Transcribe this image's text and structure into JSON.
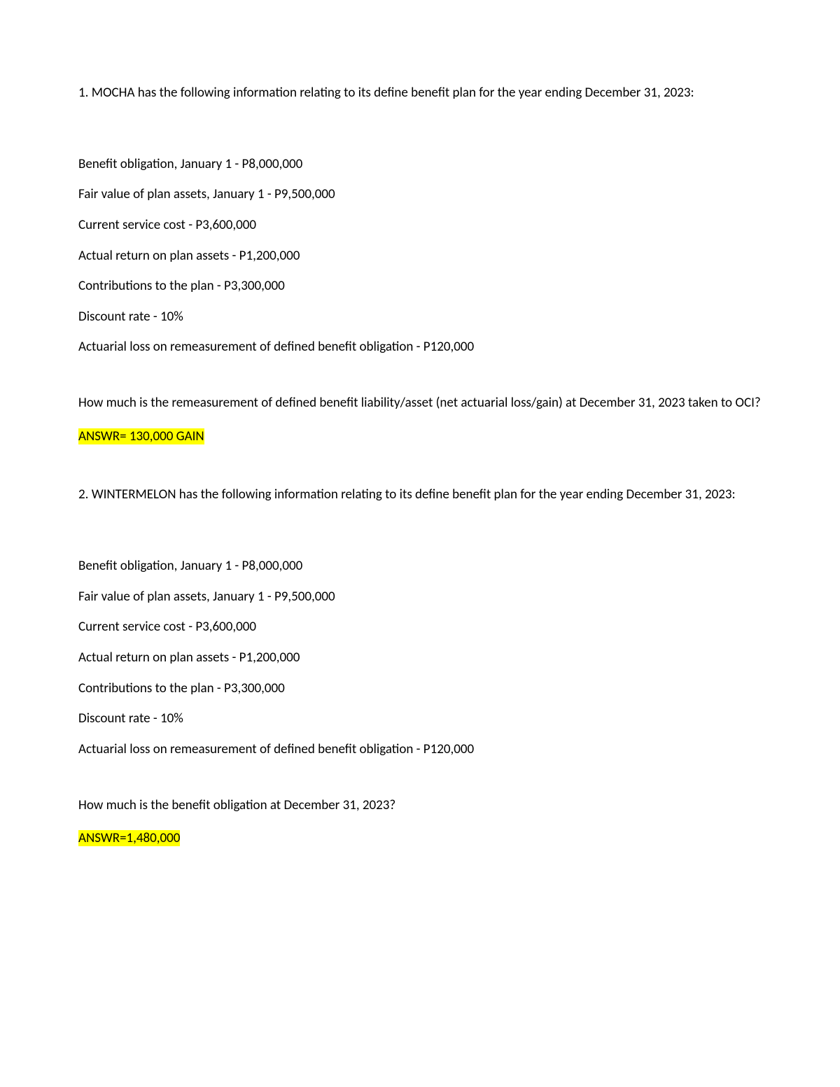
{
  "q1": {
    "intro": "1. MOCHA has the following information relating to its define benefit plan for the year ending December 31, 2023:",
    "items": [
      "Benefit obligation, January 1 - P8,000,000",
      "Fair value of plan assets, January 1 - P9,500,000",
      "Current service cost - P3,600,000",
      "Actual return on plan assets - P1,200,000",
      "Contributions to the plan - P3,300,000",
      "Discount rate - 10%",
      "Actuarial loss on remeasurement of defined benefit obligation - P120,000"
    ],
    "question": "How much is the remeasurement of defined benefit liability/asset (net actuarial loss/gain) at December 31, 2023 taken to OCI?",
    "answer": "ANSWR= 130,000 GAIN"
  },
  "q2": {
    "intro": "2. WINTERMELON has the following information relating to its define benefit plan for the year ending December 31, 2023:",
    "items": [
      "Benefit obligation, January 1 - P8,000,000",
      "Fair value of plan assets, January 1 - P9,500,000",
      "Current service cost - P3,600,000",
      "Actual return on plan assets - P1,200,000",
      "Contributions to the plan - P3,300,000",
      "Discount rate - 10%",
      "Actuarial loss on remeasurement of defined benefit obligation - P120,000"
    ],
    "question": "How much is the benefit obligation at December 31, 2023?",
    "answer": "ANSWR=1,480,000"
  },
  "colors": {
    "highlight": "#ffff00",
    "text": "#000000",
    "background": "#ffffff"
  },
  "typography": {
    "font_family": "Calibri",
    "font_size_pt": 11
  }
}
